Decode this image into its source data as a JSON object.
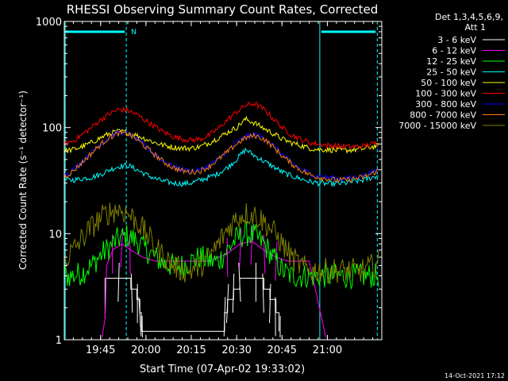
{
  "chart_data": {
    "type": "line",
    "title": "RHESSI Observing Summary Count Rates, Corrected",
    "xlabel": "Start Time (07-Apr-02 19:33:02)",
    "ylabel": "Corrected Count Rate (s⁻¹ detector⁻¹)",
    "y_scale": "log",
    "ylim": [
      1,
      1000
    ],
    "xlim_minutes": [
      0,
      105
    ],
    "x_ticks": [
      {
        "t": 12.0,
        "label": "19:45"
      },
      {
        "t": 27.0,
        "label": "20:00"
      },
      {
        "t": 42.0,
        "label": "20:15"
      },
      {
        "t": 57.0,
        "label": "20:30"
      },
      {
        "t": 72.0,
        "label": "20:45"
      },
      {
        "t": 87.0,
        "label": "21:00"
      }
    ],
    "y_ticks": [
      {
        "v": 1,
        "label": "1"
      },
      {
        "v": 10,
        "label": "10"
      },
      {
        "v": 100,
        "label": "100"
      },
      {
        "v": 1000,
        "label": "1000"
      }
    ],
    "legend_header": [
      "Det 1,3,4,5,6,9,",
      "Att 1"
    ],
    "footer_date": "14-Oct-2021 17:12",
    "annotations": [
      {
        "text": "N",
        "t": 20.5,
        "color": "#00ffff"
      }
    ],
    "night_intervals": [
      [
        0,
        20.5
      ],
      [
        84.5,
        103.5
      ]
    ],
    "event_lines": [
      {
        "t": 0.3,
        "style": "solid"
      },
      {
        "t": 20.5,
        "style": "dashed"
      },
      {
        "t": 84.5,
        "style": "solid"
      },
      {
        "t": 103.5,
        "style": "dashed"
      }
    ],
    "x": [
      0,
      3,
      6,
      9,
      12,
      15,
      18,
      21,
      24,
      27,
      30,
      33,
      36,
      39,
      42,
      45,
      48,
      51,
      54,
      57,
      60,
      63,
      66,
      69,
      72,
      75,
      78,
      81,
      84,
      87,
      90,
      93,
      96,
      99,
      102,
      105
    ],
    "series": [
      {
        "name": "3 - 6 keV",
        "color": "#ffffff",
        "values": [
          null,
          null,
          null,
          null,
          null,
          null,
          null,
          null,
          null,
          null,
          null,
          null,
          null,
          null,
          null,
          null,
          null,
          null,
          null,
          null,
          null,
          null,
          null,
          null,
          null,
          null,
          null,
          null,
          null,
          null,
          null,
          null,
          null,
          null,
          null,
          null
        ]
      },
      {
        "name": "6 - 12 keV",
        "color": "#ff00ff",
        "values": [
          null,
          null,
          null,
          null,
          null,
          null,
          null,
          null,
          null,
          null,
          null,
          null,
          null,
          null,
          null,
          null,
          null,
          null,
          null,
          null,
          null,
          null,
          null,
          null,
          null,
          null,
          null,
          null,
          null,
          null,
          null,
          null,
          null,
          null,
          null,
          null
        ]
      },
      {
        "name": "12 - 25 keV",
        "color": "#00ff00",
        "values": [
          4,
          4,
          4.3,
          5,
          6.2,
          7.5,
          9,
          9.5,
          8.5,
          7,
          6,
          5.2,
          5,
          5,
          5.5,
          6,
          5.5,
          5.5,
          7,
          9,
          10,
          9.5,
          8,
          6,
          4.5,
          4,
          4,
          4,
          4,
          4,
          4,
          4,
          4,
          4,
          4,
          4
        ]
      },
      {
        "name": "25 - 50 keV",
        "color": "#00ffff",
        "values": [
          32,
          32,
          33,
          34,
          36,
          40,
          43,
          44,
          40,
          36,
          33,
          31,
          30,
          29.5,
          30,
          32,
          34,
          37,
          42,
          50,
          62,
          54,
          48,
          43,
          38,
          35,
          33,
          31,
          30,
          29.5,
          29.5,
          30,
          31,
          32,
          34,
          36
        ]
      },
      {
        "name": "50 - 100 keV",
        "color": "#ffff00",
        "values": [
          60,
          62,
          66,
          72,
          80,
          88,
          92,
          90,
          84,
          78,
          72,
          68,
          65,
          64,
          64,
          66,
          72,
          80,
          90,
          100,
          120,
          110,
          98,
          88,
          78,
          72,
          68,
          64,
          62,
          62,
          61,
          61,
          62,
          63,
          66,
          68
        ]
      },
      {
        "name": "100 - 300 keV",
        "color": "#ff0000",
        "values": [
          70,
          75,
          86,
          100,
          118,
          135,
          148,
          145,
          132,
          116,
          102,
          90,
          82,
          78,
          76,
          78,
          85,
          98,
          118,
          140,
          162,
          168,
          148,
          122,
          100,
          86,
          78,
          72,
          70,
          68,
          67,
          66,
          66,
          67,
          70,
          74
        ]
      },
      {
        "name": "300 - 800 keV",
        "color": "#0000ff",
        "values": [
          35,
          40,
          48,
          58,
          70,
          82,
          90,
          88,
          78,
          66,
          56,
          48,
          43,
          40,
          39,
          40,
          44,
          51,
          60,
          72,
          82,
          86,
          80,
          68,
          56,
          47,
          41,
          37,
          35,
          34,
          33,
          33,
          34,
          35,
          38,
          42
        ]
      },
      {
        "name": "800 - 7000 keV",
        "color": "#ff8000",
        "values": [
          34,
          39,
          47,
          57,
          69,
          81,
          88,
          87,
          77,
          65,
          55,
          47,
          42,
          39,
          38,
          39,
          43,
          50,
          59,
          70,
          80,
          84,
          78,
          66,
          54,
          46,
          40,
          36,
          34,
          33,
          32,
          32,
          33,
          34,
          37,
          41
        ]
      },
      {
        "name": "7000 - 15000 keV",
        "color": "#808000",
        "values": [
          5.5,
          7,
          9,
          11.5,
          14,
          16,
          17,
          15.5,
          13,
          10,
          7.5,
          6,
          5,
          4.5,
          4.5,
          5,
          6,
          8,
          11,
          14,
          15.5,
          15,
          13,
          10.5,
          8,
          6,
          5,
          4.5,
          4.5,
          4.5,
          4.5,
          4.5,
          4.5,
          4.5,
          5,
          5.5
        ]
      }
    ],
    "line_data": {
      "3 - 6 keV": [
        {
          "t": 13.5,
          "v": 1.6
        },
        {
          "t": 13.5,
          "v": 3.8
        },
        {
          "t": 18.0,
          "v": 3.8
        },
        {
          "t": 22.0,
          "v": 3.0
        },
        {
          "t": 24.0,
          "v": 2.4
        },
        {
          "t": 25.0,
          "v": 1.8
        },
        {
          "t": 25.5,
          "v": 1.2
        },
        {
          "t": 52.0,
          "v": 1.2
        },
        {
          "t": 53.0,
          "v": 1.8
        },
        {
          "t": 54.0,
          "v": 2.4
        },
        {
          "t": 56.0,
          "v": 3.0
        },
        {
          "t": 58.0,
          "v": 3.8
        },
        {
          "t": 63.0,
          "v": 3.8
        },
        {
          "t": 66.0,
          "v": 3.0
        },
        {
          "t": 68.0,
          "v": 2.4
        },
        {
          "t": 70.0,
          "v": 1.8
        },
        {
          "t": 71.0,
          "v": 1.2
        }
      ],
      "6 - 12 keV": [
        {
          "t": 12.5,
          "v": 1.05
        },
        {
          "t": 13.5,
          "v": 1.6
        },
        {
          "t": 14.0,
          "v": 5
        },
        {
          "t": 16.0,
          "v": 7
        },
        {
          "t": 19.0,
          "v": 8
        },
        {
          "t": 22.0,
          "v": 7
        },
        {
          "t": 26.0,
          "v": 6
        },
        {
          "t": 30.0,
          "v": 5.5
        },
        {
          "t": 36.0,
          "v": 5.5
        },
        {
          "t": 42.0,
          "v": 5.5
        },
        {
          "t": 48.0,
          "v": 5.5
        },
        {
          "t": 54.0,
          "v": 6.5
        },
        {
          "t": 58.0,
          "v": 8
        },
        {
          "t": 62.0,
          "v": 8.5
        },
        {
          "t": 66.0,
          "v": 7
        },
        {
          "t": 70.0,
          "v": 6
        },
        {
          "t": 74.0,
          "v": 5.5
        },
        {
          "t": 79.0,
          "v": 5.5
        },
        {
          "t": 81.0,
          "v": 5.5
        },
        {
          "t": 86.5,
          "v": 1.05
        }
      ]
    }
  }
}
